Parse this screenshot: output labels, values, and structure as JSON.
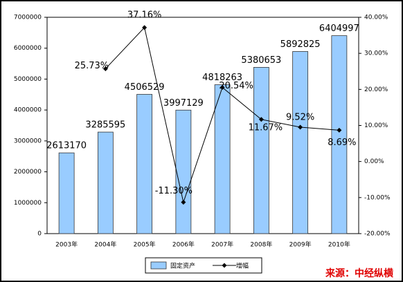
{
  "chart_data": {
    "type": "bar",
    "categories": [
      "2003年",
      "2004年",
      "2005年",
      "2006年",
      "2007年",
      "2008年",
      "2009年",
      "2010年"
    ],
    "series": [
      {
        "name": "固定资产",
        "type": "bar",
        "color": "#99ccff",
        "values": [
          2613170,
          3285595,
          4506529,
          3997129,
          4818263,
          5380653,
          5892825,
          6404997
        ]
      },
      {
        "name": "增幅",
        "type": "line",
        "axis": "y2",
        "color": "#000000",
        "values": [
          null,
          25.73,
          37.16,
          -11.3,
          20.54,
          11.67,
          9.52,
          8.69
        ],
        "value_labels": [
          null,
          "25.73%",
          "37.16%",
          "-11.30%",
          "20.54%",
          "11.67%",
          "9.52%",
          "8.69%"
        ]
      }
    ],
    "ylim": [
      0,
      7000000
    ],
    "yticks": [
      0,
      1000000,
      2000000,
      3000000,
      4000000,
      5000000,
      6000000,
      7000000
    ],
    "y2lim": [
      -20,
      40
    ],
    "y2ticks": [
      {
        "value": -20,
        "label": "-20.00%"
      },
      {
        "value": -10,
        "label": "-10.00%"
      },
      {
        "value": 0,
        "label": "0.00%"
      },
      {
        "value": 10,
        "label": "10.00%"
      },
      {
        "value": 20,
        "label": "20.00%"
      },
      {
        "value": 30,
        "label": "30.00%"
      },
      {
        "value": 40,
        "label": "40.00%"
      }
    ],
    "legend": "bottom",
    "source": "来源：中经纵横"
  }
}
